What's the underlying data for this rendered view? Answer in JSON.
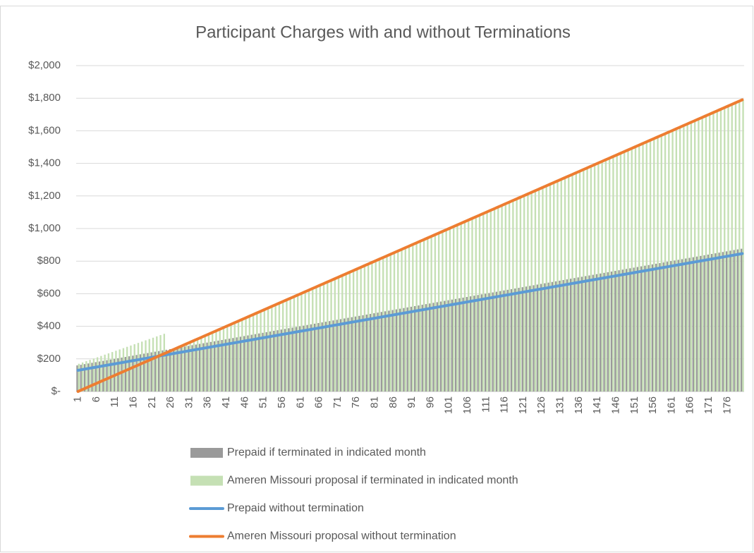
{
  "chart_data": {
    "type": "combo",
    "title": "Participant Charges with and without Terminations",
    "categories": [
      1,
      null,
      null,
      null,
      null,
      6,
      null,
      null,
      null,
      null,
      11,
      null,
      null,
      null,
      null,
      16,
      null,
      null,
      null,
      null,
      21,
      null,
      null,
      null,
      null,
      26,
      null,
      null,
      null,
      null,
      31,
      null,
      null,
      null,
      null,
      36,
      null,
      null,
      null,
      null,
      41,
      null,
      null,
      null,
      null,
      46,
      null,
      null,
      null,
      null,
      51,
      null,
      null,
      null,
      null,
      56,
      null,
      null,
      null,
      null,
      61,
      null,
      null,
      null,
      null,
      66,
      null,
      null,
      null,
      null,
      71,
      null,
      null,
      null,
      null,
      76,
      null,
      null,
      null,
      null,
      81,
      null,
      null,
      null,
      null,
      86,
      null,
      null,
      null,
      null,
      91,
      null,
      null,
      null,
      null,
      96,
      null,
      null,
      null,
      null,
      101,
      null,
      null,
      null,
      null,
      106,
      null,
      null,
      null,
      null,
      111,
      null,
      null,
      null,
      null,
      116,
      null,
      null,
      null,
      null,
      121,
      null,
      null,
      null,
      null,
      126,
      null,
      null,
      null,
      null,
      131,
      null,
      null,
      null,
      null,
      136,
      null,
      null,
      null,
      null,
      141,
      null,
      null,
      null,
      null,
      146,
      null,
      null,
      null,
      null,
      151,
      null,
      null,
      null,
      null,
      156,
      null,
      null,
      null,
      null,
      161,
      null,
      null,
      null,
      null,
      166,
      null,
      null,
      null,
      null,
      171,
      null,
      null,
      null,
      null,
      176,
      null,
      null,
      null,
      null
    ],
    "series": [
      {
        "name": "Prepaid if terminated in indicated month",
        "type": "bar",
        "color": "#9a9a9a",
        "values": [
          160,
          164,
          168,
          172,
          176,
          180,
          184,
          188,
          192,
          196,
          200,
          204,
          208,
          212,
          216,
          220,
          224,
          228,
          232,
          236,
          240,
          244,
          248,
          252,
          256,
          260,
          264,
          268,
          272,
          276,
          280,
          284,
          288,
          292,
          296,
          300,
          304,
          308,
          312,
          316,
          320,
          324,
          328,
          332,
          336,
          340,
          344,
          348,
          352,
          356,
          360,
          364,
          368,
          372,
          376,
          380,
          384,
          388,
          392,
          396,
          400,
          404,
          408,
          412,
          416,
          420,
          424,
          428,
          432,
          436,
          440,
          444,
          448,
          452,
          456,
          460,
          464,
          468,
          472,
          476,
          480,
          484,
          488,
          492,
          496,
          500,
          504,
          508,
          512,
          516,
          520,
          524,
          528,
          532,
          536,
          540,
          544,
          548,
          552,
          556,
          560,
          564,
          568,
          572,
          576,
          580,
          584,
          588,
          592,
          596,
          600,
          604,
          608,
          612,
          616,
          620,
          624,
          628,
          632,
          636,
          640,
          644,
          648,
          652,
          656,
          660,
          664,
          668,
          672,
          676,
          680,
          684,
          688,
          692,
          696,
          700,
          704,
          708,
          712,
          716,
          720,
          724,
          728,
          732,
          736,
          740,
          744,
          748,
          752,
          756,
          760,
          764,
          768,
          772,
          776,
          780,
          784,
          788,
          792,
          796,
          800,
          804,
          808,
          812,
          816,
          820,
          824,
          828,
          832,
          836,
          840,
          844,
          848,
          852,
          856,
          860,
          864,
          868,
          872,
          876
        ]
      },
      {
        "name": "Ameren Missouri proposal if terminated in indicated month",
        "type": "bar",
        "color": "#c5e0b4",
        "values": [
          170,
          178,
          186,
          194,
          202,
          210,
          218,
          226,
          234,
          242,
          250,
          258,
          266,
          274,
          282,
          290,
          298,
          306,
          314,
          322,
          330,
          338,
          346,
          354,
          240,
          250,
          260,
          270,
          280,
          290,
          300,
          310,
          320,
          330,
          340,
          350,
          360,
          370,
          380,
          390,
          400,
          410,
          420,
          430,
          440,
          450,
          460,
          470,
          480,
          490,
          500,
          510,
          520,
          530,
          540,
          550,
          560,
          570,
          580,
          590,
          600,
          610,
          620,
          630,
          640,
          650,
          660,
          670,
          680,
          690,
          700,
          710,
          720,
          730,
          740,
          750,
          760,
          770,
          780,
          790,
          800,
          810,
          820,
          830,
          840,
          850,
          860,
          870,
          880,
          890,
          900,
          910,
          920,
          930,
          940,
          950,
          960,
          970,
          980,
          990,
          1000,
          1010,
          1020,
          1030,
          1040,
          1050,
          1060,
          1070,
          1080,
          1090,
          1100,
          1110,
          1120,
          1130,
          1140,
          1150,
          1160,
          1170,
          1180,
          1190,
          1200,
          1210,
          1220,
          1230,
          1240,
          1250,
          1260,
          1270,
          1280,
          1290,
          1300,
          1310,
          1320,
          1330,
          1340,
          1350,
          1360,
          1370,
          1380,
          1390,
          1400,
          1410,
          1420,
          1430,
          1440,
          1450,
          1460,
          1470,
          1480,
          1490,
          1500,
          1510,
          1520,
          1530,
          1540,
          1550,
          1560,
          1570,
          1580,
          1590,
          1600,
          1610,
          1620,
          1630,
          1640,
          1650,
          1660,
          1670,
          1680,
          1690,
          1700,
          1710,
          1720,
          1730,
          1740,
          1750,
          1760,
          1770,
          1780,
          1790
        ]
      },
      {
        "name": "Prepaid without termination",
        "type": "line",
        "color": "#5b9bd5",
        "values": [
          130,
          134,
          138,
          142,
          146,
          150,
          154,
          158,
          162,
          166,
          170,
          174,
          178,
          182,
          186,
          190,
          194,
          198,
          202,
          206,
          210,
          214,
          218,
          222,
          226,
          230,
          234,
          238,
          242,
          246,
          250,
          254,
          258,
          262,
          266,
          270,
          274,
          278,
          282,
          286,
          290,
          294,
          298,
          302,
          306,
          310,
          314,
          318,
          322,
          326,
          330,
          334,
          338,
          342,
          346,
          350,
          354,
          358,
          362,
          366,
          370,
          374,
          378,
          382,
          386,
          390,
          394,
          398,
          402,
          406,
          410,
          414,
          418,
          422,
          426,
          430,
          434,
          438,
          442,
          446,
          450,
          454,
          458,
          462,
          466,
          470,
          474,
          478,
          482,
          486,
          490,
          494,
          498,
          502,
          506,
          510,
          514,
          518,
          522,
          526,
          530,
          534,
          538,
          542,
          546,
          550,
          554,
          558,
          562,
          566,
          570,
          574,
          578,
          582,
          586,
          590,
          594,
          598,
          602,
          606,
          610,
          614,
          618,
          622,
          626,
          630,
          634,
          638,
          642,
          646,
          650,
          654,
          658,
          662,
          666,
          670,
          674,
          678,
          682,
          686,
          690,
          694,
          698,
          702,
          706,
          710,
          714,
          718,
          722,
          726,
          730,
          734,
          738,
          742,
          746,
          750,
          754,
          758,
          762,
          766,
          770,
          774,
          778,
          782,
          786,
          790,
          794,
          798,
          802,
          806,
          810,
          814,
          818,
          822,
          826,
          830,
          834,
          838,
          842,
          846
        ]
      },
      {
        "name": "Ameren Missouri proposal without termination",
        "type": "line",
        "color": "#ed7d31",
        "values": [
          0,
          10,
          20,
          30,
          40,
          50,
          60,
          70,
          80,
          90,
          100,
          110,
          120,
          130,
          140,
          150,
          160,
          170,
          180,
          190,
          200,
          210,
          220,
          230,
          240,
          250,
          260,
          270,
          280,
          290,
          300,
          310,
          320,
          330,
          340,
          350,
          360,
          370,
          380,
          390,
          400,
          410,
          420,
          430,
          440,
          450,
          460,
          470,
          480,
          490,
          500,
          510,
          520,
          530,
          540,
          550,
          560,
          570,
          580,
          590,
          600,
          610,
          620,
          630,
          640,
          650,
          660,
          670,
          680,
          690,
          700,
          710,
          720,
          730,
          740,
          750,
          760,
          770,
          780,
          790,
          800,
          810,
          820,
          830,
          840,
          850,
          860,
          870,
          880,
          890,
          900,
          910,
          920,
          930,
          940,
          950,
          960,
          970,
          980,
          990,
          1000,
          1010,
          1020,
          1030,
          1040,
          1050,
          1060,
          1070,
          1080,
          1090,
          1100,
          1110,
          1120,
          1130,
          1140,
          1150,
          1160,
          1170,
          1180,
          1190,
          1200,
          1210,
          1220,
          1230,
          1240,
          1250,
          1260,
          1270,
          1280,
          1290,
          1300,
          1310,
          1320,
          1330,
          1340,
          1350,
          1360,
          1370,
          1380,
          1390,
          1400,
          1410,
          1420,
          1430,
          1440,
          1450,
          1460,
          1470,
          1480,
          1490,
          1500,
          1510,
          1520,
          1530,
          1540,
          1550,
          1560,
          1570,
          1580,
          1590,
          1600,
          1610,
          1620,
          1630,
          1640,
          1650,
          1660,
          1670,
          1680,
          1690,
          1700,
          1710,
          1720,
          1730,
          1740,
          1750,
          1760,
          1770,
          1780,
          1790
        ]
      }
    ],
    "ylim": [
      0,
      2000
    ],
    "yticks": [
      {
        "value": 0,
        "label": "$-"
      },
      {
        "value": 200,
        "label": "$200"
      },
      {
        "value": 400,
        "label": "$400"
      },
      {
        "value": 600,
        "label": "$600"
      },
      {
        "value": 800,
        "label": "$800"
      },
      {
        "value": 1000,
        "label": "$1,000"
      },
      {
        "value": 1200,
        "label": "$1,200"
      },
      {
        "value": 1400,
        "label": "$1,400"
      },
      {
        "value": 1600,
        "label": "$1,600"
      },
      {
        "value": 1800,
        "label": "$1,800"
      },
      {
        "value": 2000,
        "label": "$2,000"
      }
    ],
    "grid": true,
    "legend": "bottom"
  }
}
